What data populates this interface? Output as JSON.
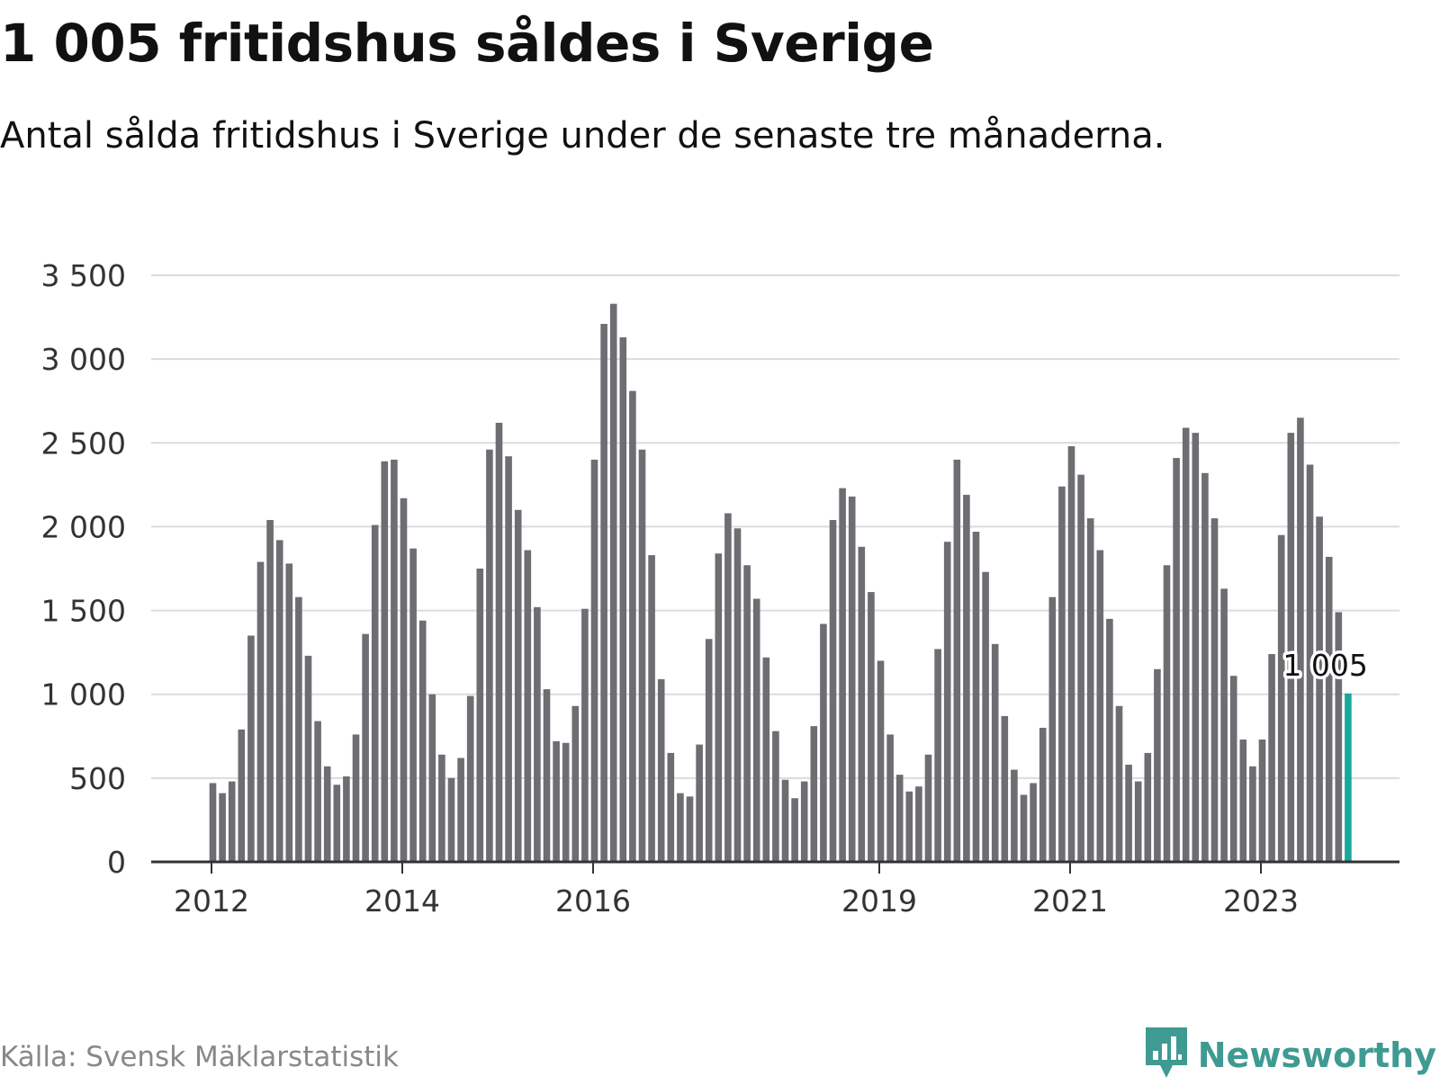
{
  "header": {
    "title": "1 005 fritidshus såldes i Sverige",
    "subtitle": "Antal sålda fritidshus i Sverige under de senaste tre månaderna."
  },
  "footer": {
    "source": "Källa: Svensk Mäklarstatistik",
    "brand": "Newsworthy",
    "brand_icon": "bar-chart-speech-bubble-icon"
  },
  "colors": {
    "bar": "#6d6d72",
    "highlight": "#17a89a",
    "grid": "#dcdcdc",
    "axis": "#333333",
    "brand": "#3f9a92"
  },
  "chart_data": {
    "type": "bar",
    "title": "1 005 fritidshus såldes i Sverige",
    "subtitle": "Antal sålda fritidshus i Sverige under de senaste tre månaderna.",
    "xlabel": "",
    "ylabel": "",
    "ylim": [
      0,
      3500
    ],
    "yticks": [
      0,
      500,
      1000,
      1500,
      2000,
      2500,
      3000,
      3500
    ],
    "ytick_labels": [
      "0",
      "500",
      "1 000",
      "1 500",
      "2 000",
      "2 500",
      "3 000",
      "3 500"
    ],
    "xtick_labels": [
      {
        "label": "2012",
        "bar_index": 0
      },
      {
        "label": "2014",
        "bar_index": 20
      },
      {
        "label": "2016",
        "bar_index": 40
      },
      {
        "label": "2019",
        "bar_index": 70
      },
      {
        "label": "2021",
        "bar_index": 90
      },
      {
        "label": "2023",
        "bar_index": 110
      }
    ],
    "grid": true,
    "highlight": {
      "index": 119,
      "label": "1 005",
      "value": 1005
    },
    "values": [
      470,
      410,
      480,
      790,
      1350,
      1790,
      2040,
      1920,
      1780,
      1580,
      1230,
      840,
      570,
      460,
      510,
      760,
      1360,
      2010,
      2390,
      2400,
      2170,
      1870,
      1440,
      1000,
      640,
      500,
      620,
      990,
      1750,
      2460,
      2620,
      2420,
      2100,
      1860,
      1520,
      1030,
      720,
      710,
      930,
      1510,
      2400,
      3210,
      3330,
      3130,
      2810,
      2460,
      1830,
      1090,
      650,
      410,
      390,
      700,
      1330,
      1840,
      2080,
      1990,
      1770,
      1570,
      1220,
      780,
      490,
      380,
      480,
      810,
      1420,
      2040,
      2230,
      2180,
      1880,
      1610,
      1200,
      760,
      520,
      420,
      450,
      640,
      1270,
      1910,
      2400,
      2190,
      1970,
      1730,
      1300,
      870,
      550,
      400,
      470,
      800,
      1580,
      2240,
      2480,
      2310,
      2050,
      1860,
      1450,
      930,
      580,
      480,
      650,
      1150,
      1770,
      2410,
      2590,
      2560,
      2320,
      2050,
      1630,
      1110,
      730,
      570,
      730,
      1240,
      1950,
      2560,
      2650,
      2370,
      2060,
      1820,
      1490,
      1005
    ]
  }
}
